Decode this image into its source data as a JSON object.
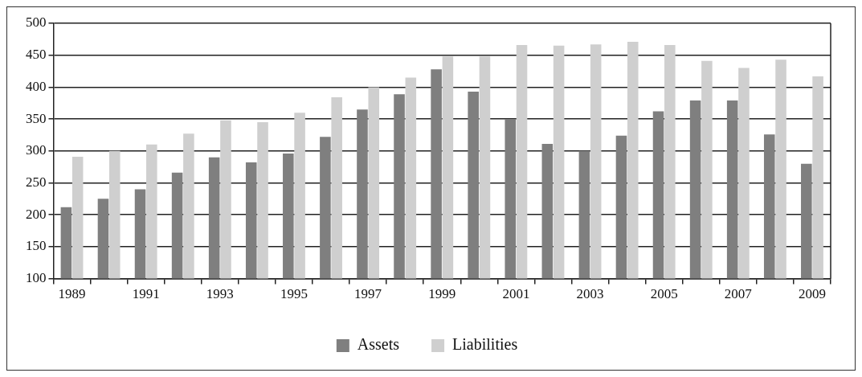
{
  "chart_data": {
    "type": "bar",
    "categories": [
      "1989",
      null,
      "1991",
      null,
      "1993",
      null,
      "1995",
      null,
      "1997",
      null,
      "1999",
      null,
      "2001",
      null,
      "2003",
      null,
      "2005",
      null,
      "2007",
      null,
      "2009"
    ],
    "series": [
      {
        "name": "Assets",
        "color": "#7f7f7f",
        "values": [
          212,
          225,
          240,
          266,
          290,
          282,
          296,
          322,
          365,
          389,
          428,
          393,
          350,
          311,
          300,
          324,
          362,
          379,
          379,
          326,
          280
        ]
      },
      {
        "name": "Liabilities",
        "color": "#cfcfcf",
        "values": [
          291,
          300,
          310,
          327,
          348,
          345,
          360,
          384,
          400,
          415,
          448,
          448,
          466,
          465,
          467,
          471,
          466,
          441,
          430,
          443,
          417
        ]
      }
    ],
    "ylim": [
      100,
      500
    ],
    "yticks": [
      100,
      150,
      200,
      250,
      300,
      350,
      400,
      450,
      500
    ],
    "grid": "y",
    "legend": "bottom"
  }
}
